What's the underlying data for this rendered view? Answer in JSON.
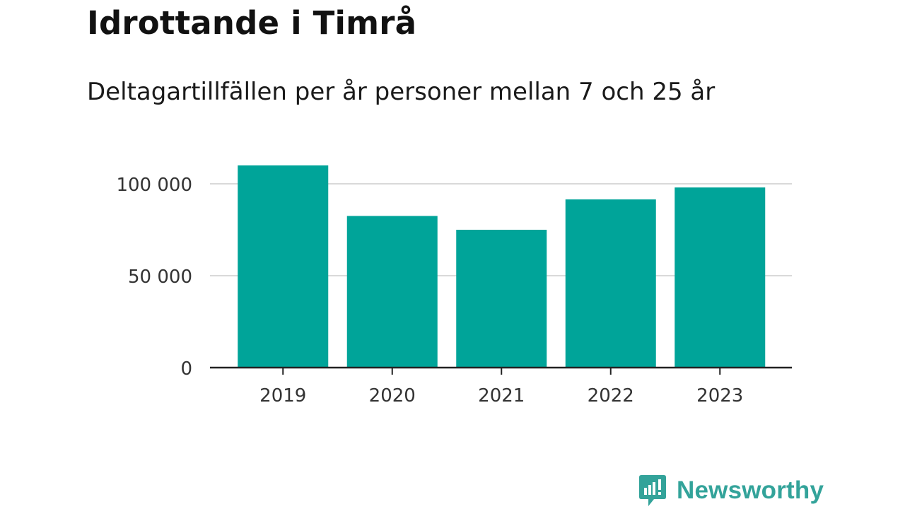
{
  "title": "Idrottande i Timrå",
  "subtitle": "Deltagartillfällen per år personer mellan 7 och 25 år",
  "brand": {
    "name": "Newsworthy",
    "icon": "newsworthy-logo-icon",
    "color": "#33a39a"
  },
  "colors": {
    "bar": "#00a499",
    "grid": "#d9d9d9",
    "axis": "#222222",
    "label": "#333333"
  },
  "chart_data": {
    "type": "bar",
    "categories": [
      "2019",
      "2020",
      "2021",
      "2022",
      "2023"
    ],
    "values": [
      110000,
      82500,
      75000,
      91500,
      98000
    ],
    "xlabel": "",
    "ylabel": "",
    "ylim": [
      0,
      115000
    ],
    "yticks": [
      0,
      50000,
      100000
    ],
    "ytick_labels": [
      "0",
      "50 000",
      "100 000"
    ],
    "grid": true,
    "legend": "none"
  }
}
